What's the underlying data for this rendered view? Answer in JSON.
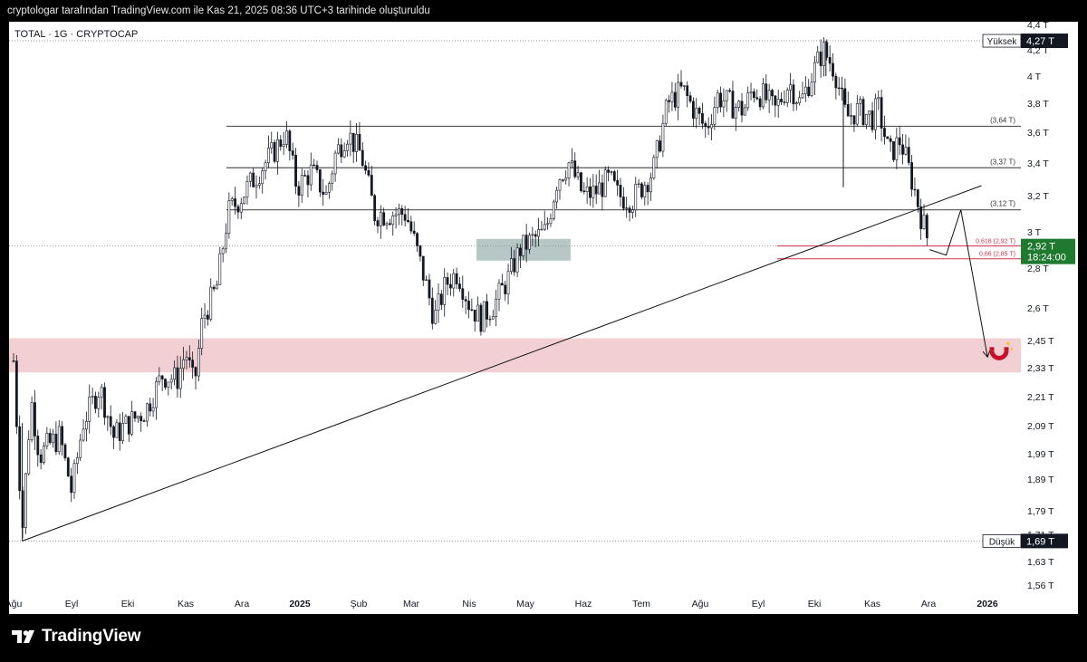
{
  "header": {
    "caption": "cryptologar tarafından TradingView.com ile Kas 21, 2025 08:36 UTC+3 tarihinde oluşturuldu"
  },
  "symbol": {
    "title": "TOTAL · 1G · CRYPTOCAP"
  },
  "brand": {
    "name": "TradingView",
    "icon": "tradingview-logo-icon"
  },
  "chart_data": {
    "type": "candlestick",
    "x_ticks": [
      "Ağu",
      "Eyl",
      "Eki",
      "Kas",
      "Ara",
      "2025",
      "Şub",
      "Mar",
      "Nis",
      "May",
      "Haz",
      "Tem",
      "Ağu",
      "Eyl",
      "Eki",
      "Kas",
      "Ara",
      "2026"
    ],
    "y_ticks": [
      "4,4 T",
      "4,2 T",
      "4 T",
      "3,8 T",
      "3,6 T",
      "3,4 T",
      "3,2 T",
      "3 T",
      "2,8 T",
      "2,6 T",
      "2,45 T",
      "2,33 T",
      "2,21 T",
      "2,09 T",
      "1,99 T",
      "1,89 T",
      "1,79 T",
      "1,71 T",
      "1,63 T",
      "1,56 T"
    ],
    "y_scale": "log",
    "ohlc_approx": [
      [
        0,
        2.36
      ],
      [
        0.15,
        1.72
      ],
      [
        0.3,
        2.2
      ],
      [
        0.45,
        1.98
      ],
      [
        0.6,
        2.02
      ],
      [
        0.8,
        2.05
      ],
      [
        1.0,
        1.85
      ],
      [
        1.2,
        2.1
      ],
      [
        1.5,
        2.25
      ],
      [
        1.75,
        2.05
      ],
      [
        2.0,
        2.1
      ],
      [
        2.3,
        2.15
      ],
      [
        2.6,
        2.3
      ],
      [
        2.85,
        2.28
      ],
      [
        3.0,
        2.4
      ],
      [
        3.15,
        2.25
      ],
      [
        3.3,
        2.55
      ],
      [
        3.55,
        2.7
      ],
      [
        3.75,
        3.1
      ],
      [
        4.0,
        3.2
      ],
      [
        4.3,
        3.35
      ],
      [
        4.6,
        3.5
      ],
      [
        4.75,
        3.6
      ],
      [
        4.95,
        3.25
      ],
      [
        5.2,
        3.35
      ],
      [
        5.45,
        3.2
      ],
      [
        5.6,
        3.45
      ],
      [
        5.8,
        3.6
      ],
      [
        6.05,
        3.45
      ],
      [
        6.3,
        3.1
      ],
      [
        6.55,
        3.1
      ],
      [
        6.9,
        3.1
      ],
      [
        7.05,
        2.95
      ],
      [
        7.25,
        2.72
      ],
      [
        7.4,
        2.55
      ],
      [
        7.6,
        2.72
      ],
      [
        7.8,
        2.78
      ],
      [
        8.0,
        2.62
      ],
      [
        8.2,
        2.55
      ],
      [
        8.45,
        2.62
      ],
      [
        8.7,
        2.75
      ],
      [
        8.9,
        2.9
      ],
      [
        9.1,
        2.95
      ],
      [
        9.35,
        3.0
      ],
      [
        9.55,
        3.3
      ],
      [
        9.75,
        3.4
      ],
      [
        10.0,
        3.2
      ],
      [
        10.2,
        3.22
      ],
      [
        10.45,
        3.3
      ],
      [
        10.6,
        3.2
      ],
      [
        10.85,
        3.18
      ],
      [
        11.0,
        3.25
      ],
      [
        11.2,
        3.35
      ],
      [
        11.45,
        3.8
      ],
      [
        11.7,
        3.9
      ],
      [
        11.9,
        3.75
      ],
      [
        12.1,
        3.62
      ],
      [
        12.3,
        3.85
      ],
      [
        12.5,
        3.8
      ],
      [
        12.75,
        3.75
      ],
      [
        12.9,
        3.9
      ],
      [
        13.1,
        3.85
      ],
      [
        13.3,
        3.75
      ],
      [
        13.55,
        3.95
      ],
      [
        13.75,
        3.8
      ],
      [
        13.95,
        4.0
      ],
      [
        14.15,
        4.2
      ],
      [
        14.35,
        4.05
      ],
      [
        14.55,
        3.7
      ],
      [
        14.75,
        3.75
      ],
      [
        15.0,
        3.7
      ],
      [
        15.1,
        3.78
      ],
      [
        15.3,
        3.45
      ],
      [
        15.5,
        3.55
      ],
      [
        15.7,
        3.3
      ],
      [
        15.9,
        3.05
      ],
      [
        16.02,
        2.92
      ]
    ],
    "horizontal_levels": [
      {
        "value": 3.64,
        "label": "(3,64 T)"
      },
      {
        "value": 3.37,
        "label": "(3,37 T)"
      },
      {
        "value": 3.12,
        "label": "(3,12 T)"
      }
    ],
    "fib_levels": [
      {
        "value": 2.92,
        "label": "0,618 (2,92 T)"
      },
      {
        "value": 2.85,
        "label": "0,66 (2,85 T)"
      }
    ],
    "zones": [
      {
        "name": "demand-zone",
        "y_from": 2.31,
        "y_to": 2.46,
        "color": "#f2cfd3"
      },
      {
        "name": "consolidation-zone",
        "x_from": 8.13,
        "x_to": 9.78,
        "y_from": 2.84,
        "y_to": 2.96,
        "color": "#b7c7c6"
      }
    ],
    "trendline": {
      "x1": 0.15,
      "y1": 1.69,
      "x2": 16.9,
      "y2": 3.26
    },
    "projection_path": [
      [
        16.02,
        2.9
      ],
      [
        16.3,
        2.87
      ],
      [
        16.55,
        3.12
      ],
      [
        17.0,
        2.38
      ]
    ],
    "high": {
      "label": "Yüksek",
      "value": "4,27 T",
      "num": 4.27
    },
    "low": {
      "label": "Düşük",
      "value": "1,69 T",
      "num": 1.69
    },
    "last_price": {
      "value": "2,92 T",
      "countdown": "18:24:00",
      "num": 2.92,
      "color": "#1e7a2e"
    },
    "colors": {
      "candle": "#131722",
      "level_line": "#555",
      "fib_line": "#d0334a",
      "zone_pink": "#f2cfd3",
      "zone_grey": "#b7c7c6"
    },
    "icons": [
      "magnet-icon"
    ]
  }
}
